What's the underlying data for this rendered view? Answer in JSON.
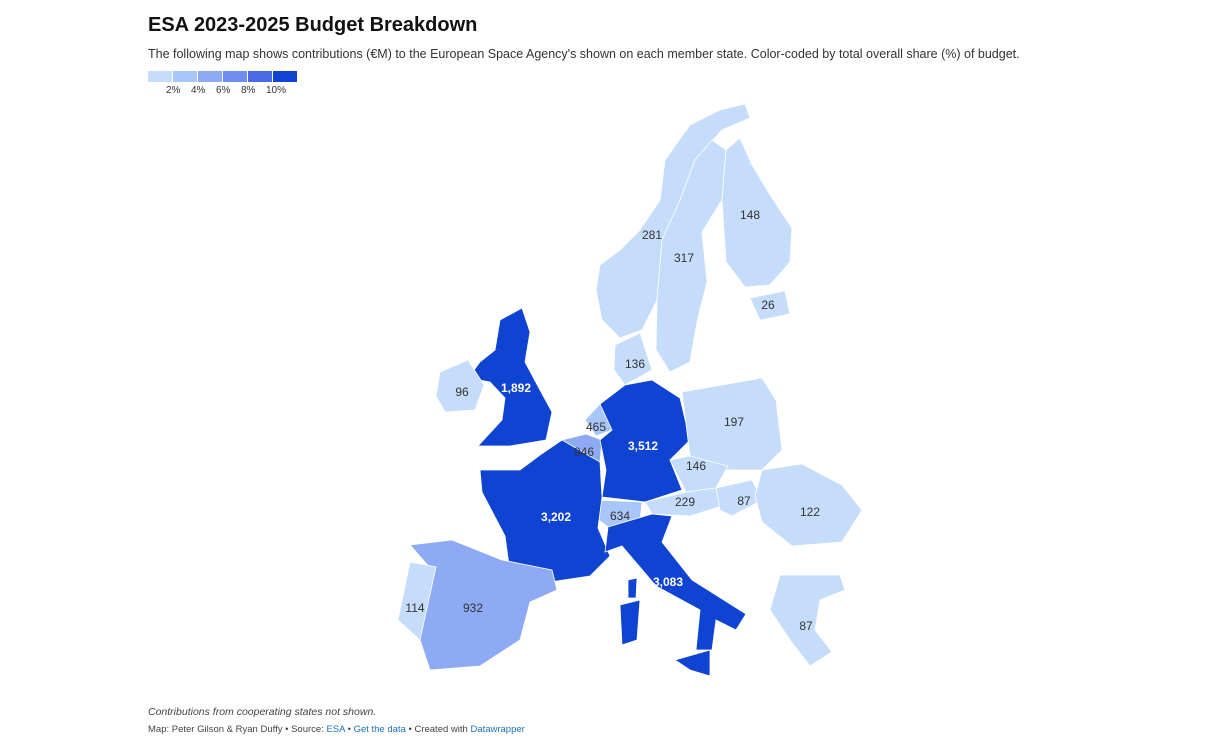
{
  "header": {
    "title": "ESA 2023-2025 Budget Breakdown",
    "description": "The following map shows contributions (€M) to the European Space Agency's shown on each member state. Color-coded by total overall share (%) of budget."
  },
  "legend": {
    "colors": [
      "#c6dcfb",
      "#a9c6fa",
      "#8eaaf5",
      "#6f8def",
      "#4a6ae3",
      "#0f43d1"
    ],
    "ticks": [
      "2%",
      "4%",
      "6%",
      "8%",
      "10%"
    ]
  },
  "map_data": {
    "unit": "€M",
    "countries": [
      {
        "name": "Norway",
        "value": "281",
        "color": "#c6dcfb"
      },
      {
        "name": "Sweden",
        "value": "317",
        "color": "#c6dcfb"
      },
      {
        "name": "Finland",
        "value": "148",
        "color": "#c6dcfb"
      },
      {
        "name": "Estonia",
        "value": "26",
        "color": "#c6dcfb"
      },
      {
        "name": "Denmark",
        "value": "136",
        "color": "#c6dcfb"
      },
      {
        "name": "United Kingdom",
        "value": "1,892",
        "color": "#0f43d1"
      },
      {
        "name": "Ireland",
        "value": "96",
        "color": "#c6dcfb"
      },
      {
        "name": "Netherlands",
        "value": "465",
        "color": "#a9c6fa"
      },
      {
        "name": "Belgium",
        "value": "946",
        "color": "#8eaaf5"
      },
      {
        "name": "Germany",
        "value": "3,512",
        "color": "#0f43d1"
      },
      {
        "name": "Poland",
        "value": "197",
        "color": "#c6dcfb"
      },
      {
        "name": "Czechia",
        "value": "146",
        "color": "#c6dcfb"
      },
      {
        "name": "Austria",
        "value": "229",
        "color": "#c6dcfb"
      },
      {
        "name": "Hungary",
        "value": "87",
        "color": "#c6dcfb"
      },
      {
        "name": "Romania",
        "value": "122",
        "color": "#c6dcfb"
      },
      {
        "name": "Switzerland",
        "value": "634",
        "color": "#a9c6fa"
      },
      {
        "name": "France",
        "value": "3,202",
        "color": "#0f43d1"
      },
      {
        "name": "Italy",
        "value": "3,083",
        "color": "#0f43d1"
      },
      {
        "name": "Spain",
        "value": "932",
        "color": "#8eaaf5"
      },
      {
        "name": "Portugal",
        "value": "114",
        "color": "#c6dcfb"
      },
      {
        "name": "Greece",
        "value": "87",
        "color": "#c6dcfb"
      }
    ]
  },
  "footer": {
    "note": "Contributions from cooperating states not shown.",
    "map_by": "Map: Peter Gilson & Ryan Duffy • Source: ",
    "source_link": "ESA",
    "sep1": " • ",
    "data_link": "Get the data",
    "sep2": " • Created with ",
    "tool_link": "Datawrapper"
  }
}
